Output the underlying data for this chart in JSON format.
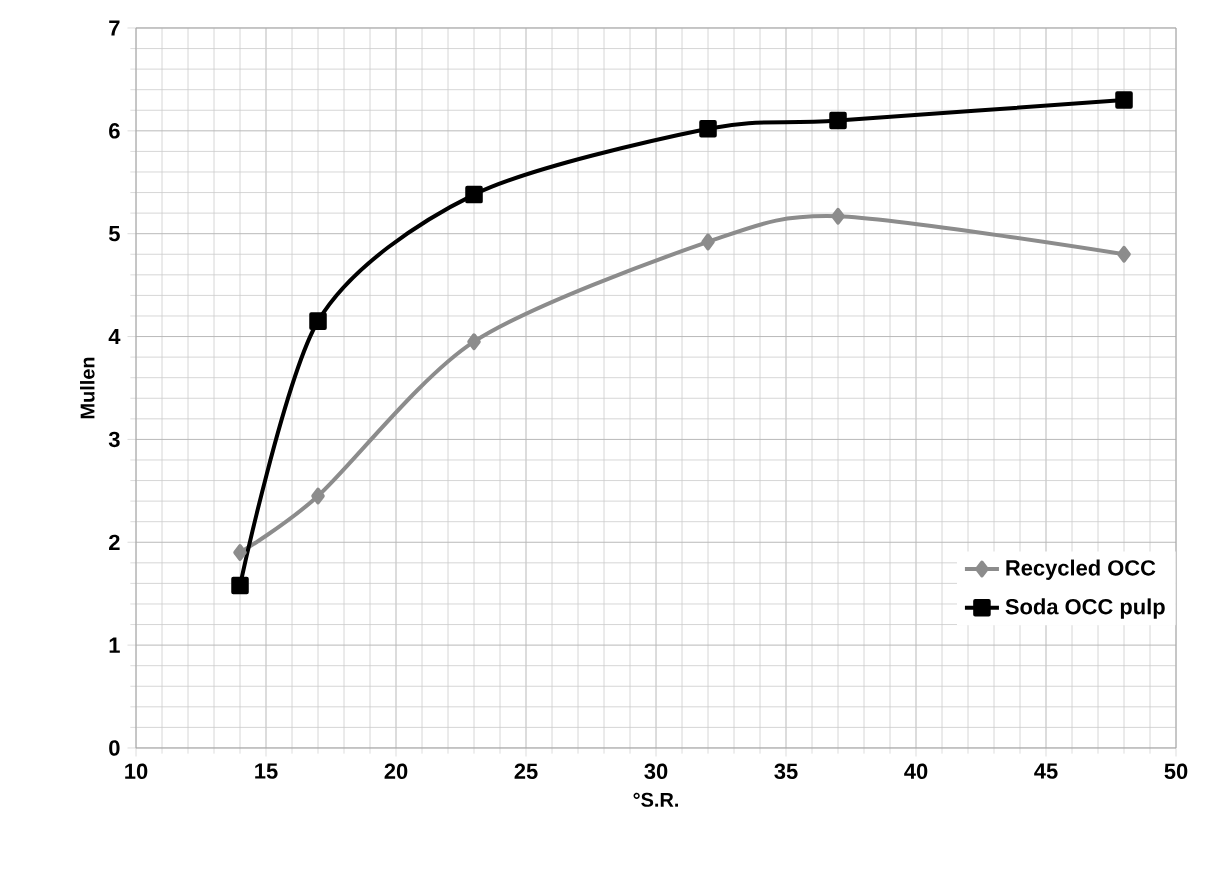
{
  "chart_data": {
    "type": "line",
    "xlabel": "°S.R.",
    "ylabel": "Mullen",
    "xlim": [
      10,
      50
    ],
    "xticks": [
      10,
      15,
      20,
      25,
      30,
      35,
      40,
      45,
      50
    ],
    "ylim": [
      0,
      7
    ],
    "yticks": [
      0,
      1,
      2,
      3,
      4,
      5,
      6,
      7
    ],
    "grid": true,
    "legend": "bottom right",
    "series": [
      {
        "name": "Recycled  OCC",
        "color": "#8c8c8c",
        "marker": "diamond",
        "x": [
          14,
          17,
          23,
          32,
          37,
          48
        ],
        "values": [
          1.9,
          2.45,
          3.95,
          4.92,
          5.17,
          4.8
        ]
      },
      {
        "name": "Soda OCC pulp",
        "color": "#000000",
        "marker": "square",
        "x": [
          14,
          17,
          23,
          32,
          37,
          48
        ],
        "values": [
          1.58,
          4.15,
          5.38,
          6.02,
          6.1,
          6.3
        ]
      }
    ]
  }
}
